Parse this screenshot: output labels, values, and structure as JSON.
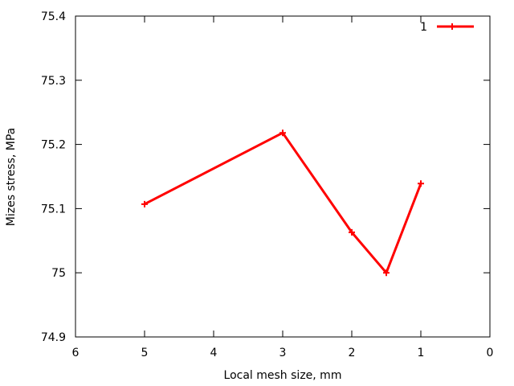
{
  "chart_data": {
    "type": "line",
    "title": "",
    "xlabel": "Local mesh size, mm",
    "ylabel": "Mizes stress, MPa",
    "xlim": [
      6,
      0
    ],
    "ylim": [
      74.9,
      75.4
    ],
    "x_reversed": true,
    "x_ticks": [
      6,
      5,
      4,
      3,
      2,
      1,
      0
    ],
    "y_ticks": [
      74.9,
      75,
      75.1,
      75.2,
      75.3,
      75.4
    ],
    "x_tick_labels": [
      "6",
      "5",
      "4",
      "3",
      "2",
      "1",
      "0"
    ],
    "y_tick_labels": [
      "74.9",
      "75",
      "75.1",
      "75.2",
      "75.3",
      "75.4"
    ],
    "grid": false,
    "legend_position": "top-right",
    "series": [
      {
        "name": "1",
        "color": "#ff0000",
        "marker": "plus",
        "x": [
          5,
          3,
          2,
          1.5,
          1
        ],
        "y": [
          75.107,
          75.218,
          75.063,
          75.0,
          75.139
        ]
      }
    ]
  }
}
